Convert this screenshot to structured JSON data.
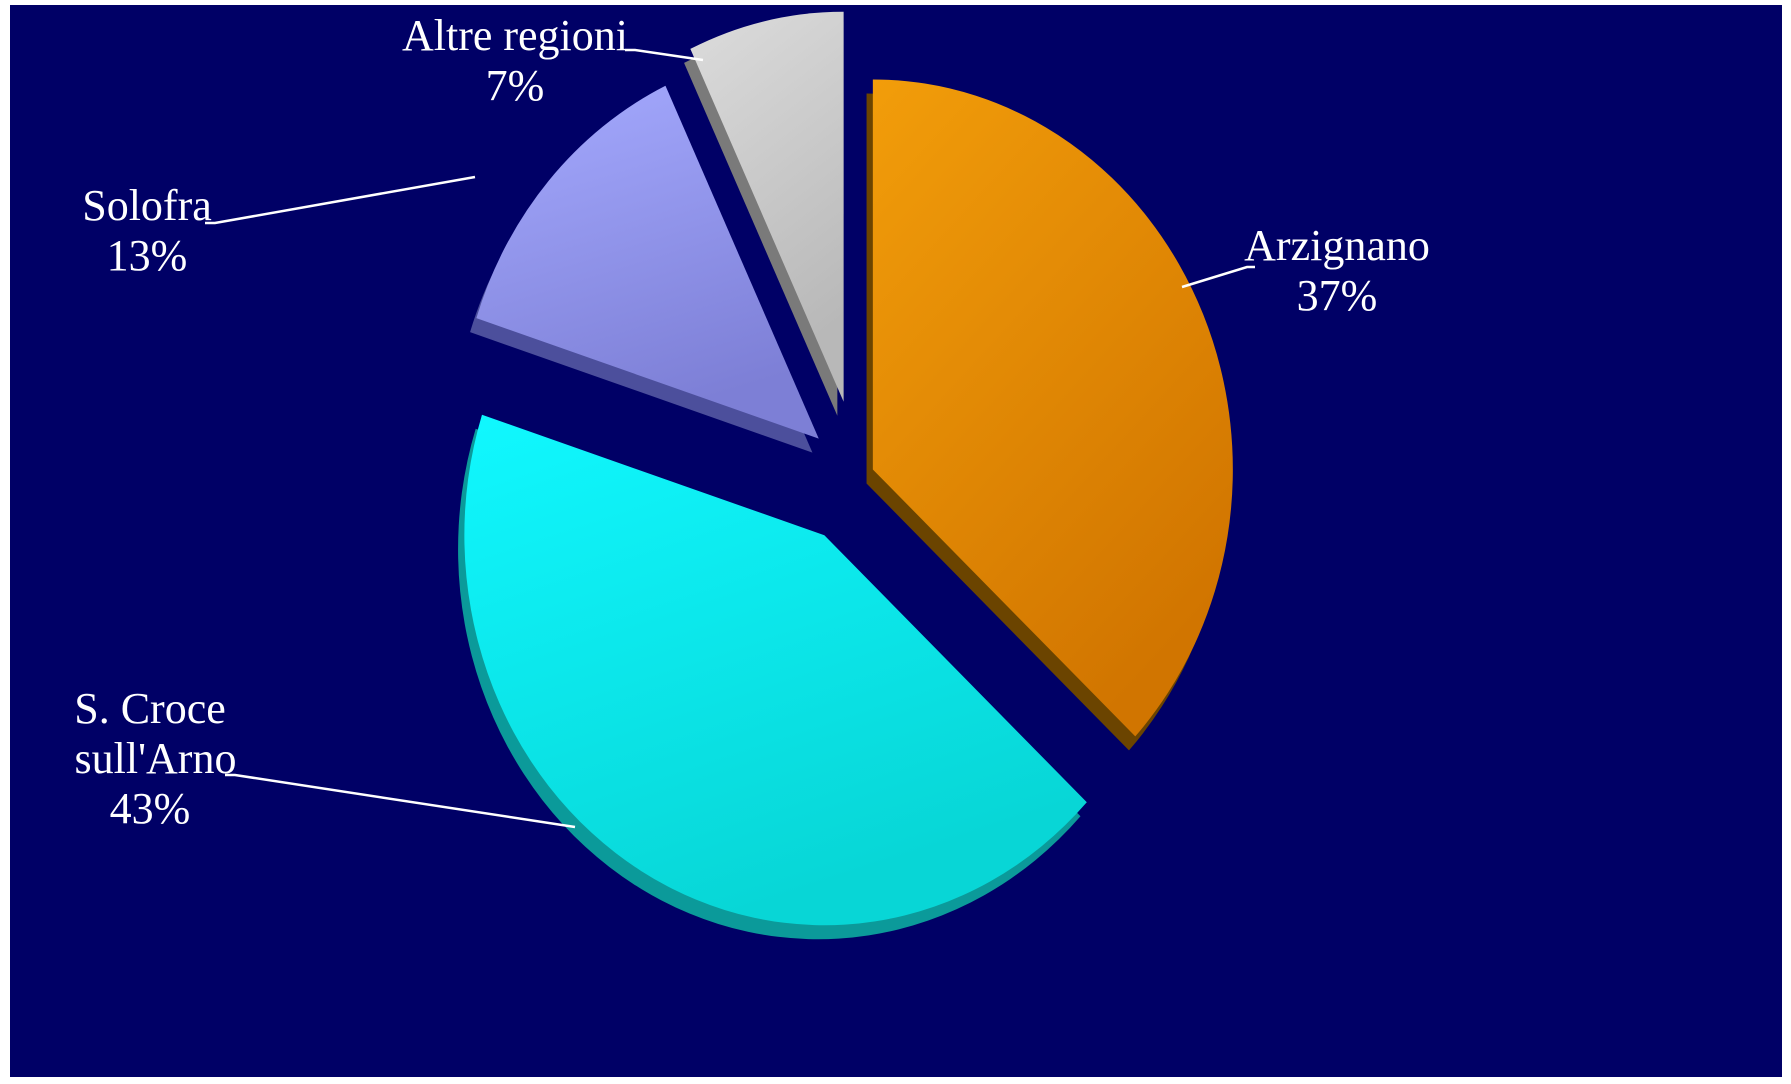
{
  "chart_data": {
    "type": "pie",
    "exploded": true,
    "style": "3d",
    "legend": "none",
    "slices": [
      {
        "name": "Arzignano",
        "value": 37,
        "label": "37%",
        "color": "#f29e0c"
      },
      {
        "name": "S. Croce sull'Arno",
        "value": 43,
        "label": "43%",
        "color": "#12f2f7"
      },
      {
        "name": "Solofra",
        "value": 13,
        "label": "13%",
        "color": "#9a9ff0"
      },
      {
        "name": "Altre regioni",
        "value": 7,
        "label": "7%",
        "color": "#d2d2d2"
      }
    ],
    "colors": {
      "background": "#000066",
      "label_text": "#ffffff"
    }
  }
}
